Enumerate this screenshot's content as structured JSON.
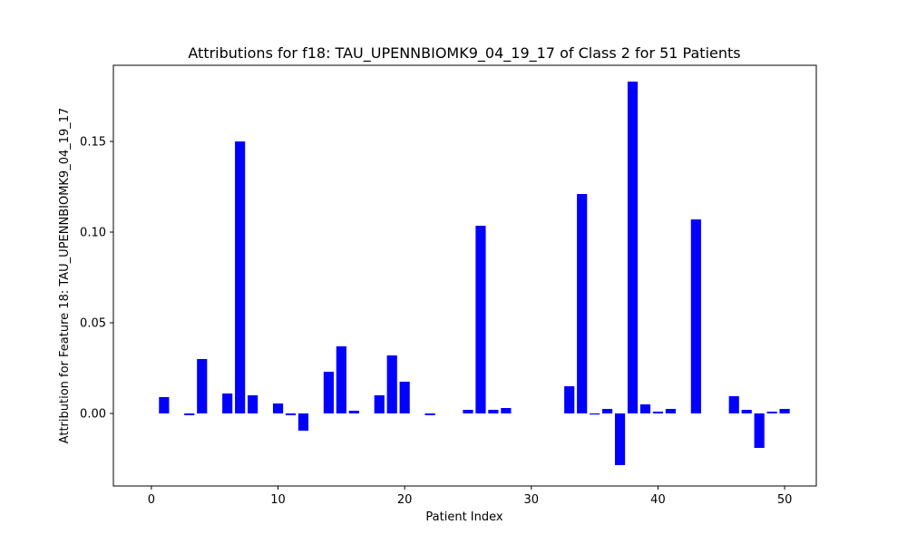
{
  "chart_data": {
    "type": "bar",
    "title": "Attributions for f18: TAU_UPENNBIOMK9_04_19_17 of Class 2 for 51 Patients",
    "xlabel": "Patient Index",
    "ylabel": "Attribution for Feature 18: TAU_UPENNBIOMK9_04_19_17",
    "xlim": [
      -3,
      52.5
    ],
    "ylim": [
      -0.04,
      0.192
    ],
    "xticks": [
      0,
      10,
      20,
      30,
      40,
      50
    ],
    "yticks": [
      0.0,
      0.05,
      0.1,
      0.15
    ],
    "ytick_labels": [
      "0.00",
      "0.05",
      "0.10",
      "0.15"
    ],
    "bar_color": "#0000ff",
    "grid": false,
    "x": [
      0,
      1,
      2,
      3,
      4,
      5,
      6,
      7,
      8,
      9,
      10,
      11,
      12,
      13,
      14,
      15,
      16,
      17,
      18,
      19,
      20,
      21,
      22,
      23,
      24,
      25,
      26,
      27,
      28,
      29,
      30,
      31,
      32,
      33,
      34,
      35,
      36,
      37,
      38,
      39,
      40,
      41,
      42,
      43,
      44,
      45,
      46,
      47,
      48,
      49,
      50
    ],
    "values": [
      0.0,
      0.009,
      0.0,
      -0.001,
      0.03,
      0.0,
      0.011,
      0.15,
      0.01,
      0.0,
      0.0055,
      -0.001,
      -0.0095,
      0.0,
      0.023,
      0.037,
      0.0015,
      0.0,
      0.01,
      0.032,
      0.0175,
      0.0,
      -0.001,
      0.0,
      0.0,
      0.002,
      0.1035,
      0.002,
      0.003,
      0.0,
      0.0,
      0.0,
      0.0,
      0.015,
      0.121,
      -0.0005,
      0.0025,
      -0.0285,
      0.183,
      0.005,
      0.001,
      0.0025,
      0.0,
      0.107,
      0.0,
      0.0,
      0.0095,
      0.002,
      -0.019,
      0.001,
      0.0025
    ]
  }
}
